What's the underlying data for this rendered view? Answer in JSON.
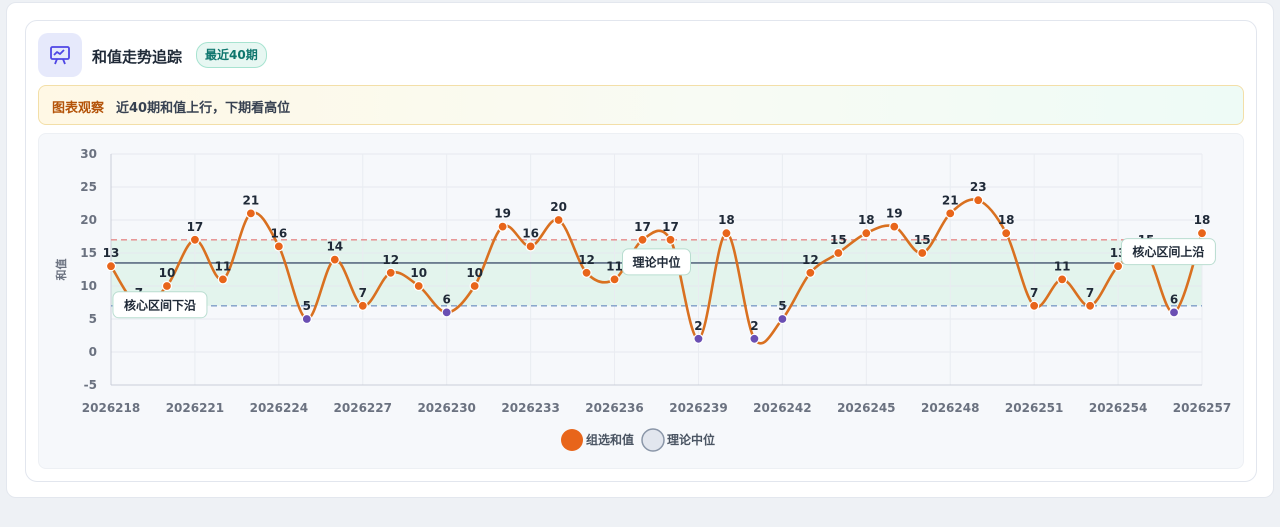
{
  "header": {
    "title": "和值走势追踪",
    "badge": "最近40期",
    "icon": "trend-chart-icon"
  },
  "observation": {
    "label": "图表观察",
    "text": "近40期和值上行，下期看高位"
  },
  "chart_data": {
    "type": "line",
    "ylabel": "和值",
    "ylim": [
      -5,
      30
    ],
    "yticks": [
      -5,
      0,
      5,
      10,
      15,
      20,
      25,
      30
    ],
    "x": [
      "2026218",
      "2026219",
      "2026220",
      "2026221",
      "2026222",
      "2026223",
      "2026224",
      "2026225",
      "2026226",
      "2026227",
      "2026228",
      "2026229",
      "2026230",
      "2026231",
      "2026232",
      "2026233",
      "2026234",
      "2026235",
      "2026236",
      "2026237",
      "2026238",
      "2026239",
      "2026240",
      "2026241",
      "2026242",
      "2026243",
      "2026244",
      "2026245",
      "2026246",
      "2026247",
      "2026248",
      "2026249",
      "2026250",
      "2026251",
      "2026252",
      "2026253",
      "2026254",
      "2026255",
      "2026256",
      "2026257"
    ],
    "xtick_labels": [
      "2026218",
      "2026221",
      "2026224",
      "2026227",
      "2026230",
      "2026233",
      "2026236",
      "2026239",
      "2026242",
      "2026245",
      "2026248",
      "2026251",
      "2026254",
      "2026257"
    ],
    "series": [
      {
        "name": "组选和值",
        "color": "#e8651a",
        "line_color": "#d97020",
        "values": [
          13,
          7,
          10,
          17,
          11,
          21,
          16,
          5,
          14,
          7,
          12,
          10,
          6,
          10,
          19,
          16,
          20,
          12,
          11,
          17,
          17,
          2,
          18,
          2,
          5,
          12,
          15,
          18,
          19,
          15,
          21,
          23,
          18,
          7,
          11,
          7,
          13,
          15,
          6,
          18
        ]
      },
      {
        "name": "理论中位",
        "color": "#5b6b82",
        "value": 13.5
      }
    ],
    "reference_lines": [
      {
        "label": "核心区间上沿",
        "value": 17,
        "color": "#e58a8a"
      },
      {
        "label": "核心区间下沿",
        "value": 7,
        "color": "#7d9cc8"
      }
    ],
    "band": {
      "from": 7,
      "to": 17,
      "color": "#dff3ea"
    },
    "median_label": "理论中位",
    "legend": [
      "组选和值",
      "理论中位"
    ],
    "legend_position": "bottom",
    "grid": true
  }
}
